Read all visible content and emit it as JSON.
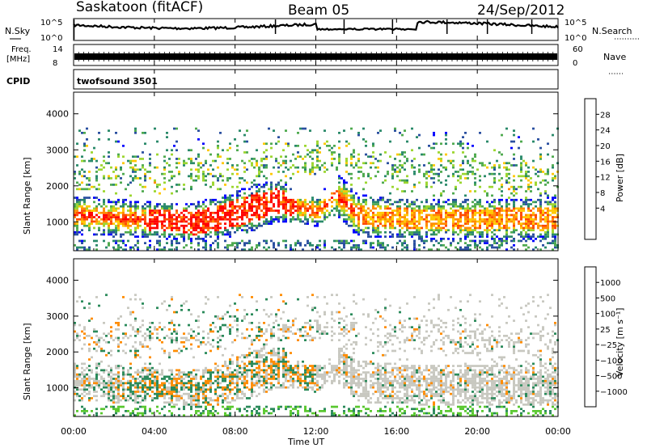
{
  "header": {
    "station": "Saskatoon (fitACF)",
    "beam": "Beam 05",
    "date": "24/Sep/2012"
  },
  "strip": {
    "nsky_label": "N.Sky",
    "nsky_ticks": [
      "10^5",
      "10^0"
    ],
    "nsearch_label": "N.Search",
    "freq_label_1": "Freq.",
    "freq_label_2": "[MHz]",
    "freq_ticks": [
      "14",
      "8"
    ],
    "nave_label": "Nave",
    "nave_ticks": [
      "60",
      "0"
    ],
    "cpid_label": "CPID",
    "cpid_value": "twofsound 3501"
  },
  "chart_data": [
    {
      "type": "heatmap",
      "name": "power",
      "ylabel": "Slant Range [km]",
      "xlabel": "",
      "ylim": [
        200,
        4600
      ],
      "yticks": [
        1000,
        2000,
        3000,
        4000
      ],
      "xlim_hours": [
        0,
        24
      ],
      "colorbar": {
        "label": "Power [dB]",
        "ticks": [
          "28",
          "24",
          "20",
          "16",
          "12",
          "8",
          "4"
        ],
        "colors": [
          "#ff0000",
          "#ff4a00",
          "#ff8c00",
          "#ffc800",
          "#9cd62f",
          "#4faa4f",
          "#2a8a6a",
          "#2a4fa0",
          "#0000ff"
        ]
      }
    },
    {
      "type": "heatmap",
      "name": "velocity",
      "ylabel": "Slant Range [km]",
      "xlabel": "Time UT",
      "ylim": [
        200,
        4600
      ],
      "yticks": [
        1000,
        2000,
        3000,
        4000
      ],
      "xlim_hours": [
        0,
        24
      ],
      "xticks": [
        "00:00",
        "04:00",
        "08:00",
        "12:00",
        "16:00",
        "20:00",
        "00:00"
      ],
      "colorbar": {
        "label": "Velocity [m s⁻¹]",
        "ticks": [
          "1000",
          "500",
          "100",
          "25",
          "−25",
          "−100",
          "−500",
          "−1000"
        ],
        "colors": [
          "#1a3fc0",
          "#2a6ab0",
          "#2a8a5a",
          "#59c82f",
          "#c8c8c0",
          "#c8c8c0",
          "#ff8c00",
          "#ff5a00",
          "#ff0000"
        ]
      }
    }
  ]
}
